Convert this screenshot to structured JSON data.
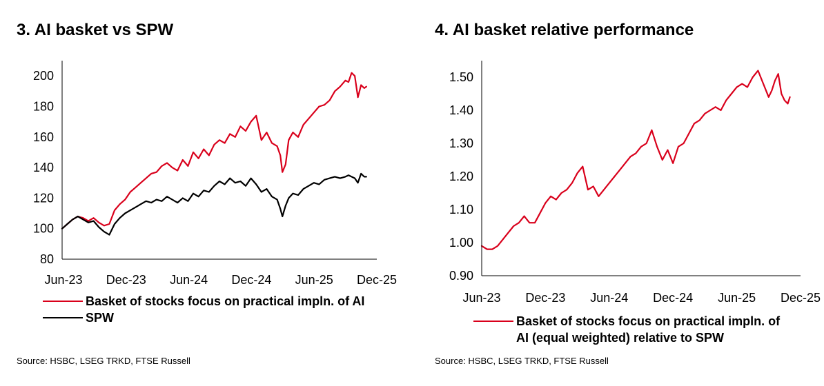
{
  "left_panel": {
    "title": "3. AI basket vs SPW",
    "source": "Source: HSBC, LSEG TRKD, FTSE Russell",
    "legend": [
      {
        "label": "Basket of stocks focus on practical impln. of AI",
        "color": "#d9001b"
      },
      {
        "label": "SPW",
        "color": "#000000"
      }
    ]
  },
  "right_panel": {
    "title": "4. AI basket relative performance",
    "source": "Source: HSBC, LSEG TRKD, FTSE Russell",
    "legend": [
      {
        "label_line1": "Basket of stocks focus on practical impln. of",
        "label_line2": "AI (equal weighted) relative to SPW",
        "color": "#d9001b"
      }
    ]
  },
  "chart_data": [
    {
      "type": "line",
      "title": "3. AI basket vs SPW",
      "xlabel": "",
      "ylabel": "",
      "x_tick_labels": [
        "Jun-23",
        "Dec-23",
        "Jun-24",
        "Dec-24",
        "Jun-25",
        "Dec-25"
      ],
      "x_range": [
        0,
        30
      ],
      "ylim": [
        80,
        210
      ],
      "y_ticks": [
        80,
        100,
        120,
        140,
        160,
        180,
        200
      ],
      "grid": false,
      "legend_position": "bottom",
      "series": [
        {
          "name": "Basket of stocks focus on practical impln. of AI",
          "color": "#d9001b",
          "x": [
            0,
            0.5,
            1,
            1.5,
            2,
            2.5,
            3,
            3.5,
            4,
            4.5,
            5,
            5.5,
            6,
            6.5,
            7,
            7.5,
            8,
            8.5,
            9,
            9.5,
            10,
            10.5,
            11,
            11.5,
            12,
            12.5,
            13,
            13.5,
            14,
            14.5,
            15,
            15.5,
            16,
            16.5,
            17,
            17.5,
            18,
            18.5,
            19,
            19.5,
            20,
            20.5,
            20.8,
            21,
            21.3,
            21.6,
            22,
            22.5,
            23,
            23.5,
            24,
            24.5,
            25,
            25.5,
            26,
            26.5,
            27,
            27.3,
            27.6,
            27.9,
            28.2,
            28.5,
            28.8,
            29
          ],
          "y": [
            100,
            103,
            106,
            108,
            107,
            105,
            107,
            104,
            102,
            103,
            112,
            116,
            119,
            124,
            127,
            130,
            133,
            136,
            137,
            141,
            143,
            140,
            138,
            145,
            141,
            150,
            146,
            152,
            148,
            155,
            158,
            156,
            162,
            160,
            167,
            164,
            170,
            174,
            158,
            163,
            156,
            154,
            148,
            137,
            142,
            158,
            163,
            160,
            168,
            172,
            176,
            180,
            181,
            184,
            190,
            193,
            197,
            196,
            202,
            200,
            186,
            194,
            192,
            193
          ]
        },
        {
          "name": "SPW",
          "color": "#000000",
          "x": [
            0,
            0.5,
            1,
            1.5,
            2,
            2.5,
            3,
            3.5,
            4,
            4.5,
            5,
            5.5,
            6,
            6.5,
            7,
            7.5,
            8,
            8.5,
            9,
            9.5,
            10,
            10.5,
            11,
            11.5,
            12,
            12.5,
            13,
            13.5,
            14,
            14.5,
            15,
            15.5,
            16,
            16.5,
            17,
            17.5,
            18,
            18.5,
            19,
            19.5,
            20,
            20.5,
            20.8,
            21,
            21.3,
            21.6,
            22,
            22.5,
            23,
            23.5,
            24,
            24.5,
            25,
            25.5,
            26,
            26.5,
            27,
            27.3,
            27.6,
            27.9,
            28.2,
            28.5,
            28.8,
            29
          ],
          "y": [
            100,
            103,
            106,
            108,
            106,
            104,
            105,
            101,
            98,
            96,
            103,
            107,
            110,
            112,
            114,
            116,
            118,
            117,
            119,
            118,
            121,
            119,
            117,
            120,
            118,
            123,
            121,
            125,
            124,
            128,
            131,
            129,
            133,
            130,
            131,
            128,
            133,
            129,
            124,
            126,
            121,
            119,
            113,
            108,
            115,
            120,
            123,
            122,
            126,
            128,
            130,
            129,
            132,
            133,
            134,
            133,
            134,
            135,
            134,
            133,
            130,
            136,
            134,
            134
          ]
        }
      ]
    },
    {
      "type": "line",
      "title": "4. AI basket relative performance",
      "xlabel": "",
      "ylabel": "",
      "x_tick_labels": [
        "Jun-23",
        "Dec-23",
        "Jun-24",
        "Dec-24",
        "Jun-25",
        "Dec-25"
      ],
      "x_range": [
        0,
        30
      ],
      "ylim": [
        0.9,
        1.55
      ],
      "y_tick_labels": [
        "0.90",
        "1.00",
        "1.10",
        "1.20",
        "1.30",
        "1.40",
        "1.50"
      ],
      "y_ticks": [
        0.9,
        1.0,
        1.1,
        1.2,
        1.3,
        1.4,
        1.5
      ],
      "grid": false,
      "legend_position": "bottom",
      "series": [
        {
          "name": "Basket of stocks focus on practical impln. of AI (equal weighted) relative to SPW",
          "color": "#d9001b",
          "x": [
            0,
            0.5,
            1,
            1.5,
            2,
            2.5,
            3,
            3.5,
            4,
            4.5,
            5,
            5.5,
            6,
            6.5,
            7,
            7.5,
            8,
            8.5,
            9,
            9.5,
            10,
            10.5,
            11,
            11.5,
            12,
            12.5,
            13,
            13.5,
            14,
            14.5,
            15,
            15.5,
            16,
            16.5,
            17,
            17.5,
            18,
            18.5,
            19,
            19.5,
            20,
            20.5,
            21,
            21.5,
            22,
            22.5,
            23,
            23.5,
            24,
            24.5,
            25,
            25.5,
            26,
            26.5,
            27,
            27.3,
            27.6,
            27.9,
            28.2,
            28.5,
            28.8,
            29
          ],
          "y": [
            0.99,
            0.98,
            0.98,
            0.99,
            1.01,
            1.03,
            1.05,
            1.06,
            1.08,
            1.06,
            1.06,
            1.09,
            1.12,
            1.14,
            1.13,
            1.15,
            1.16,
            1.18,
            1.21,
            1.23,
            1.16,
            1.17,
            1.14,
            1.16,
            1.18,
            1.2,
            1.22,
            1.24,
            1.26,
            1.27,
            1.29,
            1.3,
            1.34,
            1.29,
            1.25,
            1.28,
            1.24,
            1.29,
            1.3,
            1.33,
            1.36,
            1.37,
            1.39,
            1.4,
            1.41,
            1.4,
            1.43,
            1.45,
            1.47,
            1.48,
            1.47,
            1.5,
            1.52,
            1.48,
            1.44,
            1.46,
            1.49,
            1.51,
            1.45,
            1.43,
            1.42,
            1.44
          ]
        }
      ]
    }
  ]
}
